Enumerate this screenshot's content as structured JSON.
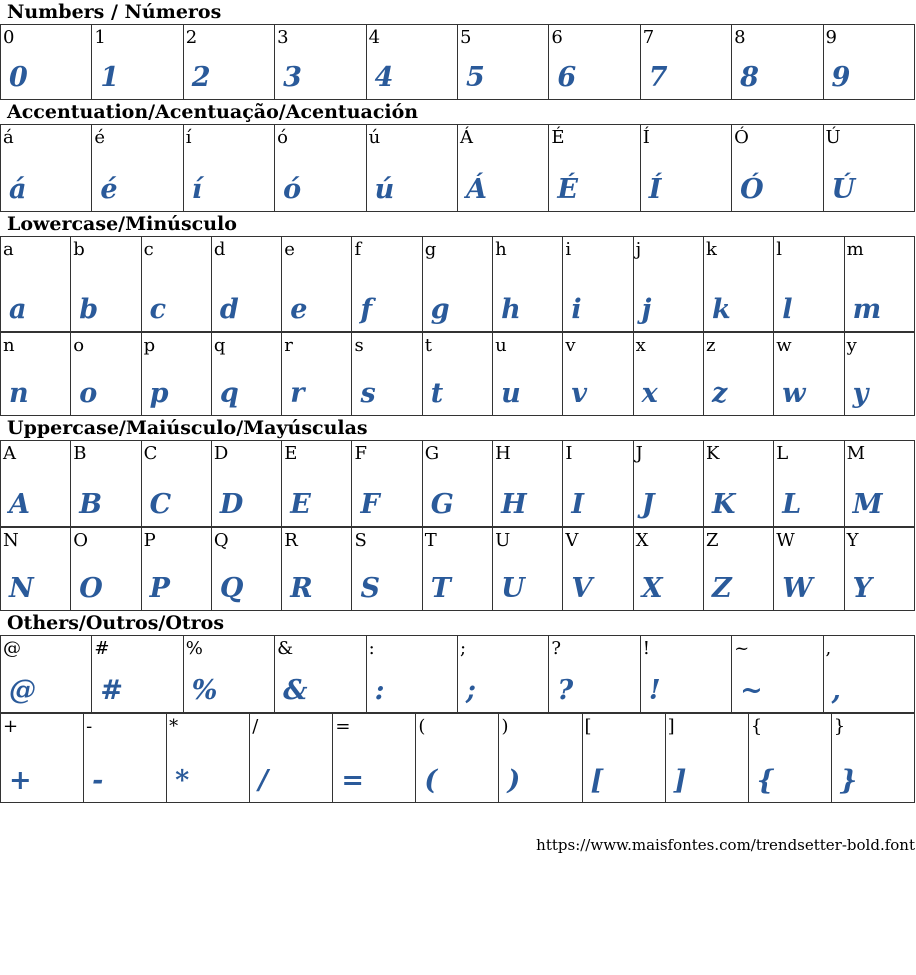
{
  "sections": [
    {
      "title": "Numbers / Números",
      "rows": [
        {
          "chars": [
            "0",
            "1",
            "2",
            "3",
            "4",
            "5",
            "6",
            "7",
            "8",
            "9"
          ]
        }
      ]
    },
    {
      "title": "Accentuation/Acentuação/Acentuación",
      "rows": [
        {
          "chars": [
            "á",
            "é",
            "í",
            "ó",
            "ú",
            "Á",
            "É",
            "Í",
            "Ó",
            "Ú"
          ]
        }
      ]
    },
    {
      "title": "Lowercase/Minúsculo",
      "rows": [
        {
          "chars": [
            "a",
            "b",
            "c",
            "d",
            "e",
            "f",
            "g",
            "h",
            "i",
            "j",
            "k",
            "l",
            "m"
          ]
        },
        {
          "chars": [
            "n",
            "o",
            "p",
            "q",
            "r",
            "s",
            "t",
            "u",
            "v",
            "x",
            "z",
            "w",
            "y"
          ]
        }
      ]
    },
    {
      "title": "Uppercase/Maiúsculo/Mayúsculas",
      "rows": [
        {
          "chars": [
            "A",
            "B",
            "C",
            "D",
            "E",
            "F",
            "G",
            "H",
            "I",
            "J",
            "K",
            "L",
            "M"
          ]
        },
        {
          "chars": [
            "N",
            "O",
            "P",
            "Q",
            "R",
            "S",
            "T",
            "U",
            "V",
            "X",
            "Z",
            "W",
            "Y"
          ]
        }
      ]
    },
    {
      "title": "Others/Outros/Otros",
      "rows": [
        {
          "chars": [
            "@",
            "#",
            "%",
            "&",
            ":",
            ";",
            "?",
            "!",
            "~",
            ","
          ]
        },
        {
          "chars": [
            "+",
            "-",
            "*",
            "/",
            "=",
            "(",
            ")",
            "[",
            "]",
            "{",
            "}"
          ]
        }
      ]
    }
  ],
  "footer": {
    "url": "https://www.maisfontes.com/trendsetter-bold.font"
  },
  "colors": {
    "glyph": "#2a5a9a"
  }
}
